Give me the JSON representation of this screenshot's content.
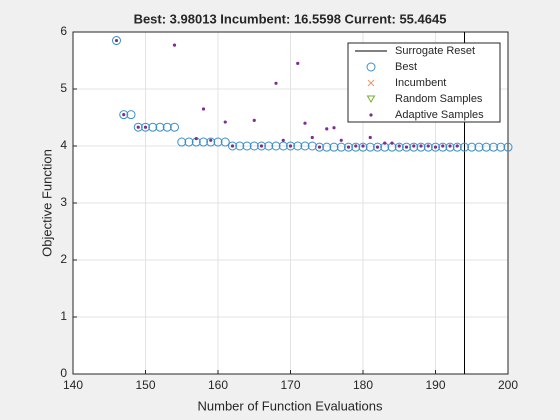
{
  "chart_data": {
    "type": "scatter",
    "title": "Best: 3.98013 Incumbent: 16.5598 Current: 55.4645",
    "xlabel": "Number of Function Evaluations",
    "ylabel": "Objective Function",
    "xlim": [
      140,
      200
    ],
    "xticks": [
      140,
      150,
      160,
      170,
      180,
      190,
      200
    ],
    "ylim": [
      0,
      6
    ],
    "yticks": [
      0,
      1,
      2,
      3,
      4,
      5,
      6
    ],
    "grid": true,
    "legend": "top-right",
    "series": [
      {
        "name": "Surrogate Reset",
        "color": "#000000",
        "marker": "vline",
        "x": [
          194
        ]
      },
      {
        "name": "Best",
        "color": "#3a8fc7",
        "marker": "circle",
        "x": [
          146,
          147,
          148,
          149,
          150,
          151,
          152,
          153,
          154,
          155,
          156,
          157,
          158,
          159,
          160,
          161,
          162,
          163,
          164,
          165,
          166,
          167,
          168,
          169,
          170,
          171,
          172,
          173,
          174,
          175,
          176,
          177,
          178,
          179,
          180,
          181,
          182,
          183,
          184,
          185,
          186,
          187,
          188,
          189,
          190,
          191,
          192,
          193,
          194,
          195,
          196,
          197,
          198,
          199,
          200
        ],
        "values": [
          5.85,
          4.55,
          4.55,
          4.33,
          4.33,
          4.33,
          4.33,
          4.33,
          4.33,
          4.07,
          4.07,
          4.07,
          4.07,
          4.07,
          4.07,
          4.07,
          4.0,
          4.0,
          4.0,
          4.0,
          4.0,
          4.0,
          4.0,
          4.0,
          4.0,
          4.0,
          4.0,
          4.0,
          3.98,
          3.98,
          3.98,
          3.98,
          3.98,
          3.98,
          3.98,
          3.98,
          3.98,
          3.98,
          3.98,
          3.98,
          3.98,
          3.98,
          3.98,
          3.98,
          3.98,
          3.98,
          3.98,
          3.98,
          3.98,
          3.98,
          3.98,
          3.98,
          3.98,
          3.98,
          3.98
        ]
      },
      {
        "name": "Incumbent",
        "color": "#e8956b",
        "marker": "x",
        "x": [],
        "values": []
      },
      {
        "name": "Random Samples",
        "color": "#77ac30",
        "marker": "triangle",
        "x": [],
        "values": []
      },
      {
        "name": "Adaptive Samples",
        "color": "#7e2f8e",
        "marker": "dot",
        "x": [
          146,
          147,
          149,
          150,
          154,
          157,
          158,
          159,
          161,
          162,
          165,
          166,
          168,
          169,
          170,
          171,
          172,
          173,
          174,
          175,
          176,
          177,
          178,
          179,
          180,
          181,
          182,
          183,
          184,
          185,
          186,
          187,
          188,
          189,
          190,
          191,
          192,
          193
        ],
        "values": [
          5.85,
          4.55,
          4.33,
          4.33,
          5.77,
          4.13,
          4.65,
          4.1,
          4.42,
          4.0,
          4.45,
          4.0,
          5.1,
          4.1,
          4.0,
          5.45,
          4.4,
          4.15,
          3.98,
          4.3,
          4.32,
          4.1,
          3.98,
          4.0,
          4.0,
          4.15,
          3.98,
          4.05,
          4.05,
          4.0,
          3.98,
          4.0,
          4.0,
          4.0,
          3.98,
          4.0,
          4.0,
          4.0
        ]
      }
    ]
  }
}
